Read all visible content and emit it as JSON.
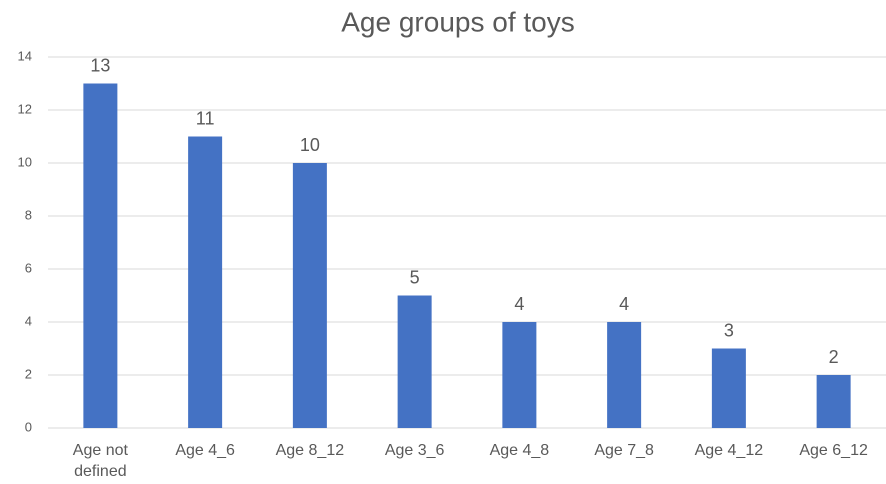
{
  "chart_data": {
    "type": "bar",
    "title": "Age groups of toys",
    "categories": [
      "Age not defined",
      "Age 4_6",
      "Age 8_12",
      "Age 3_6",
      "Age 4_8",
      "Age 7_8",
      "Age 4_12",
      "Age 6_12"
    ],
    "values": [
      13,
      11,
      10,
      5,
      4,
      4,
      3,
      2
    ],
    "color": "#4472c4",
    "ylim": [
      0,
      14
    ],
    "yticks": [
      0,
      2,
      4,
      6,
      8,
      10,
      12,
      14
    ],
    "grid": true
  }
}
